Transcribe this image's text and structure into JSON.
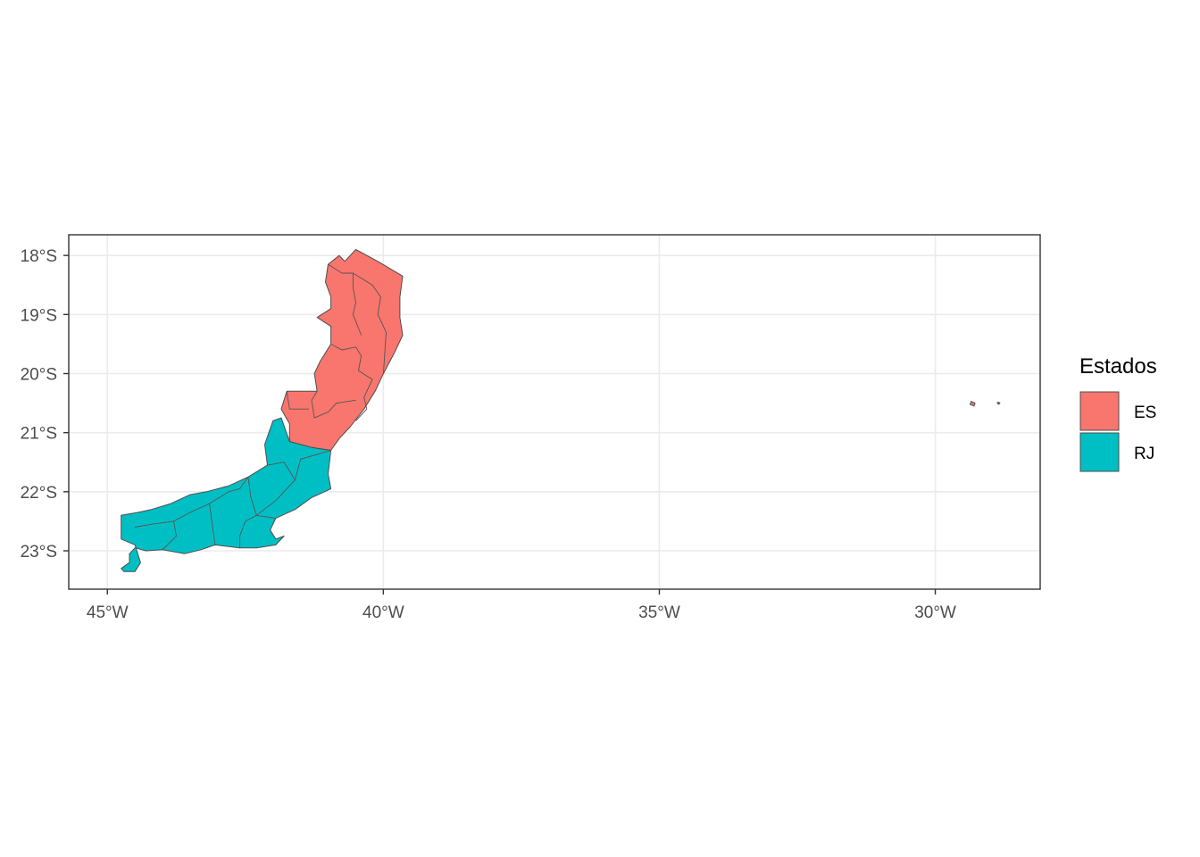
{
  "chart_data": {
    "type": "map",
    "x_axis": {
      "ticks": [
        -45,
        -40,
        -35,
        -30
      ],
      "tick_labels": [
        "45°W",
        "40°W",
        "35°W",
        "30°W"
      ],
      "range": [
        -45.7,
        -28.1
      ]
    },
    "y_axis": {
      "ticks": [
        -18,
        -19,
        -20,
        -21,
        -22,
        -23
      ],
      "tick_labels": [
        "18°S",
        "19°S",
        "20°S",
        "21°S",
        "22°S",
        "23°S"
      ],
      "range": [
        -23.65,
        -17.65
      ]
    },
    "grid": true,
    "legend": {
      "title": "Estados",
      "placement": "right",
      "items": [
        {
          "label": "ES",
          "color": "#F8766D"
        },
        {
          "label": "RJ",
          "color": "#00BFC4"
        }
      ]
    },
    "regions": [
      {
        "state": "ES",
        "color": "#F8766D",
        "boundary": [
          [
            -40.5,
            -17.9
          ],
          [
            -40.1,
            -18.1
          ],
          [
            -39.65,
            -18.35
          ],
          [
            -39.7,
            -18.7
          ],
          [
            -39.7,
            -19.05
          ],
          [
            -39.65,
            -19.35
          ],
          [
            -39.8,
            -19.65
          ],
          [
            -40.0,
            -20.0
          ],
          [
            -40.15,
            -20.3
          ],
          [
            -40.35,
            -20.6
          ],
          [
            -40.6,
            -20.9
          ],
          [
            -40.8,
            -21.1
          ],
          [
            -40.95,
            -21.3
          ],
          [
            -41.3,
            -21.25
          ],
          [
            -41.7,
            -21.15
          ],
          [
            -41.7,
            -20.85
          ],
          [
            -41.85,
            -20.6
          ],
          [
            -41.75,
            -20.3
          ],
          [
            -41.2,
            -20.3
          ],
          [
            -41.25,
            -20.0
          ],
          [
            -41.15,
            -19.8
          ],
          [
            -41.05,
            -19.65
          ],
          [
            -40.95,
            -19.5
          ],
          [
            -40.95,
            -19.2
          ],
          [
            -41.2,
            -19.05
          ],
          [
            -40.95,
            -18.9
          ],
          [
            -40.95,
            -18.7
          ],
          [
            -41.05,
            -18.45
          ],
          [
            -41.0,
            -18.15
          ],
          [
            -40.8,
            -18.0
          ],
          [
            -40.7,
            -18.1
          ]
        ]
      },
      {
        "state": "RJ",
        "color": "#00BFC4",
        "boundary": [
          [
            -41.85,
            -20.75
          ],
          [
            -41.7,
            -21.15
          ],
          [
            -41.3,
            -21.25
          ],
          [
            -40.95,
            -21.3
          ],
          [
            -41.0,
            -21.7
          ],
          [
            -40.95,
            -21.95
          ],
          [
            -41.3,
            -22.1
          ],
          [
            -41.6,
            -22.3
          ],
          [
            -41.95,
            -22.45
          ],
          [
            -42.05,
            -22.65
          ],
          [
            -41.95,
            -22.8
          ],
          [
            -41.8,
            -22.75
          ],
          [
            -41.95,
            -22.9
          ],
          [
            -42.3,
            -22.95
          ],
          [
            -42.6,
            -22.95
          ],
          [
            -43.05,
            -22.9
          ],
          [
            -43.3,
            -22.98
          ],
          [
            -43.6,
            -23.05
          ],
          [
            -44.0,
            -22.98
          ],
          [
            -44.3,
            -23.0
          ],
          [
            -44.5,
            -22.95
          ],
          [
            -44.6,
            -23.05
          ],
          [
            -44.6,
            -23.2
          ],
          [
            -44.75,
            -23.3
          ],
          [
            -44.7,
            -23.35
          ],
          [
            -44.5,
            -23.35
          ],
          [
            -44.4,
            -23.2
          ],
          [
            -44.5,
            -22.9
          ],
          [
            -44.75,
            -22.8
          ],
          [
            -44.75,
            -22.4
          ],
          [
            -44.45,
            -22.35
          ],
          [
            -44.2,
            -22.3
          ],
          [
            -43.85,
            -22.2
          ],
          [
            -43.5,
            -22.05
          ],
          [
            -43.2,
            -22.0
          ],
          [
            -42.8,
            -21.9
          ],
          [
            -42.45,
            -21.75
          ],
          [
            -42.1,
            -21.55
          ],
          [
            -42.15,
            -21.2
          ],
          [
            -42.0,
            -20.8
          ]
        ]
      },
      {
        "state": "ES",
        "color": "#F8766D",
        "boundary": [
          [
            -29.35,
            -20.47
          ],
          [
            -29.28,
            -20.5
          ],
          [
            -29.3,
            -20.55
          ],
          [
            -29.37,
            -20.52
          ]
        ]
      },
      {
        "state": "ES",
        "color": "#F8766D",
        "boundary": [
          [
            -28.86,
            -20.48
          ],
          [
            -28.83,
            -20.5
          ],
          [
            -28.85,
            -20.52
          ],
          [
            -28.88,
            -20.5
          ]
        ]
      }
    ],
    "internal_borders": [
      [
        [
          -41.0,
          -18.15
        ],
        [
          -40.75,
          -18.3
        ],
        [
          -40.55,
          -18.3
        ],
        [
          -40.55,
          -18.55
        ],
        [
          -40.5,
          -18.8
        ],
        [
          -40.55,
          -19.0
        ],
        [
          -40.4,
          -19.35
        ]
      ],
      [
        [
          -40.55,
          -18.3
        ],
        [
          -40.2,
          -18.5
        ],
        [
          -40.05,
          -18.7
        ],
        [
          -40.1,
          -19.0
        ],
        [
          -39.95,
          -19.3
        ],
        [
          -40.0,
          -20.0
        ]
      ],
      [
        [
          -40.95,
          -19.5
        ],
        [
          -40.75,
          -19.6
        ],
        [
          -40.5,
          -19.55
        ],
        [
          -40.4,
          -19.7
        ],
        [
          -40.45,
          -19.95
        ]
      ],
      [
        [
          -40.45,
          -19.95
        ],
        [
          -40.2,
          -20.1
        ],
        [
          -40.35,
          -20.4
        ],
        [
          -40.3,
          -20.6
        ],
        [
          -40.5,
          -20.8
        ]
      ],
      [
        [
          -41.2,
          -20.3
        ],
        [
          -41.3,
          -20.45
        ],
        [
          -41.25,
          -20.75
        ],
        [
          -41.0,
          -20.65
        ],
        [
          -40.85,
          -20.5
        ],
        [
          -40.5,
          -20.45
        ]
      ],
      [
        [
          -41.75,
          -20.3
        ],
        [
          -41.7,
          -20.6
        ],
        [
          -41.35,
          -20.6
        ]
      ],
      [
        [
          -40.95,
          -21.3
        ],
        [
          -41.5,
          -21.45
        ],
        [
          -41.6,
          -21.8
        ],
        [
          -41.95,
          -22.15
        ],
        [
          -42.3,
          -22.4
        ],
        [
          -42.5,
          -22.5
        ],
        [
          -42.6,
          -22.75
        ],
        [
          -42.6,
          -22.95
        ]
      ],
      [
        [
          -41.6,
          -21.8
        ],
        [
          -41.8,
          -21.5
        ],
        [
          -42.1,
          -21.55
        ]
      ],
      [
        [
          -42.45,
          -21.75
        ],
        [
          -42.4,
          -22.1
        ],
        [
          -42.3,
          -22.4
        ]
      ],
      [
        [
          -42.45,
          -21.75
        ],
        [
          -42.6,
          -21.95
        ],
        [
          -42.8,
          -22.0
        ],
        [
          -43.15,
          -22.2
        ],
        [
          -43.5,
          -22.35
        ],
        [
          -43.8,
          -22.5
        ],
        [
          -44.2,
          -22.55
        ],
        [
          -44.5,
          -22.6
        ]
      ],
      [
        [
          -43.15,
          -22.2
        ],
        [
          -43.1,
          -22.55
        ],
        [
          -43.05,
          -22.9
        ]
      ],
      [
        [
          -43.8,
          -22.5
        ],
        [
          -43.75,
          -22.75
        ],
        [
          -44.0,
          -22.98
        ]
      ],
      [
        [
          -42.3,
          -22.4
        ],
        [
          -41.95,
          -22.45
        ]
      ]
    ]
  }
}
